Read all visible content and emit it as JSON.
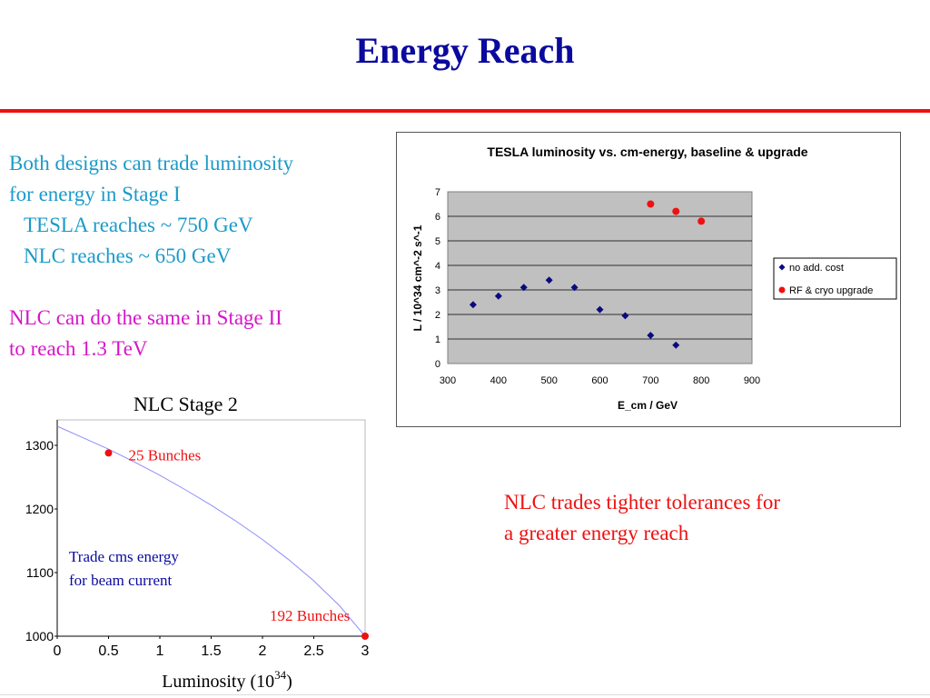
{
  "slide": {
    "title": "Energy Reach",
    "bullets": {
      "line1": "Both designs can trade luminosity",
      "line2": "for energy in Stage I",
      "line3": "TESLA reaches ~ 750 GeV",
      "line4": "NLC reaches ~ 650 GeV",
      "line5": "NLC can do the same in Stage II",
      "line6": "to reach 1.3 TeV"
    },
    "note": {
      "line1": "NLC trades tighter tolerances for",
      "line2": "a greater energy reach"
    },
    "colors": {
      "title": "#0a0a9e",
      "rule": "#ee1111",
      "teal_text": "#1a9ac9",
      "magenta_text": "#d615c9",
      "red_text": "#ee1111"
    }
  },
  "chart_data": [
    {
      "type": "scatter",
      "title": "TESLA luminosity vs. cm-energy, baseline & upgrade",
      "xlabel": "E_cm / GeV",
      "ylabel": "L / 10^34 cm^-2 s^-1",
      "xlim": [
        300,
        900
      ],
      "ylim": [
        0,
        7
      ],
      "xticks": [
        "300",
        "400",
        "500",
        "600",
        "700",
        "800",
        "900"
      ],
      "yticks": [
        "0",
        "1",
        "2",
        "3",
        "4",
        "5",
        "6",
        "7"
      ],
      "grid": true,
      "legend": "right",
      "series": [
        {
          "name": "no add. cost",
          "color": "#0a0a80",
          "marker": "diamond",
          "x": [
            350,
            400,
            450,
            500,
            550,
            600,
            650,
            700,
            750
          ],
          "y": [
            2.4,
            2.75,
            3.1,
            3.4,
            3.1,
            2.2,
            1.95,
            1.15,
            0.75
          ]
        },
        {
          "name": "RF & cryo upgrade",
          "color": "#ee1111",
          "marker": "circle",
          "x": [
            700,
            750,
            800
          ],
          "y": [
            6.5,
            6.2,
            5.8
          ]
        }
      ]
    },
    {
      "type": "line",
      "title": "NLC Stage 2",
      "xlabel": "Luminosity (10",
      "xlabel_sup": "34",
      "xlabel_close": ")",
      "xlim": [
        0,
        3
      ],
      "ylim": [
        1000,
        1340
      ],
      "xticks": [
        "0",
        "0.5",
        "1",
        "1.5",
        "2",
        "2.5",
        "3"
      ],
      "yticks": [
        "1000",
        "1100",
        "1200",
        "1300"
      ],
      "grid": false,
      "curve": {
        "color": "#8c8cff",
        "x": [
          0,
          0.25,
          0.5,
          0.75,
          1,
          1.25,
          1.5,
          1.75,
          2,
          2.25,
          2.5,
          2.75,
          3
        ],
        "y": [
          1330,
          1312,
          1294,
          1274,
          1253,
          1230,
          1206,
          1180,
          1152,
          1121,
          1087,
          1048,
          1000
        ]
      },
      "points": [
        {
          "x": 0.5,
          "y": 1288,
          "label": "25 Bunches",
          "color": "#ee1111"
        },
        {
          "x": 3,
          "y": 1000,
          "label": "192 Bunches",
          "color": "#ee1111"
        }
      ],
      "annotation": {
        "line1": "Trade cms energy",
        "line2": "for beam current",
        "color": "#0a0a9e"
      }
    }
  ]
}
